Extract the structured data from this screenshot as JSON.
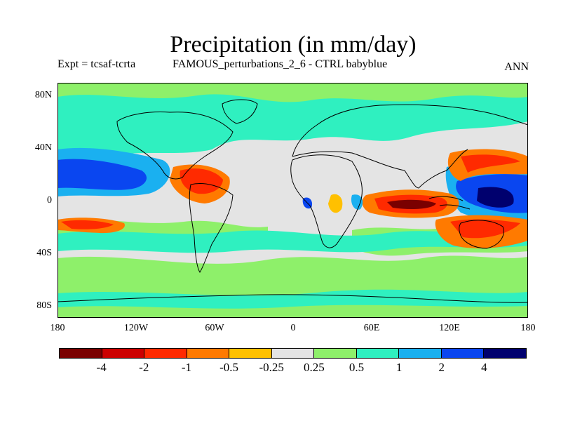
{
  "title": "Precipitation (in mm/day)",
  "subtitle_left": "Expt = tcsaf-tcrta",
  "subtitle_center": "FAMOUS_perturbations_2_6 - CTRL babyblue",
  "subtitle_right": "ANN",
  "y_axis_labels": [
    "80N",
    "40N",
    "0",
    "40S",
    "80S"
  ],
  "x_axis_labels": [
    "180",
    "120W",
    "60W",
    "0",
    "60E",
    "120E",
    "180"
  ],
  "colorbar": {
    "colors": [
      "#7a0000",
      "#cc0000",
      "#ff2a00",
      "#ff7a00",
      "#ffc000",
      "#e4e4e4",
      "#8ef06a",
      "#2ff0c0",
      "#1ab0f0",
      "#0a46f0",
      "#00006e"
    ],
    "labels": [
      "-4",
      "-2",
      "-1",
      "-0.5",
      "-0.25",
      "0.25",
      "0.5",
      "1",
      "2",
      "4"
    ]
  },
  "chart_data": {
    "type": "heatmap",
    "title": "Precipitation (in mm/day)",
    "xlabel": "",
    "ylabel": "",
    "x_ticks": [
      "180",
      "120W",
      "60W",
      "0",
      "60E",
      "120E",
      "180"
    ],
    "y_ticks": [
      "80N",
      "40N",
      "0",
      "40S",
      "80S"
    ],
    "legend": "colorbar-bottom",
    "contour_levels": [
      -4,
      -2,
      -1,
      -0.5,
      -0.25,
      0.25,
      0.5,
      1,
      2,
      4
    ]
  }
}
